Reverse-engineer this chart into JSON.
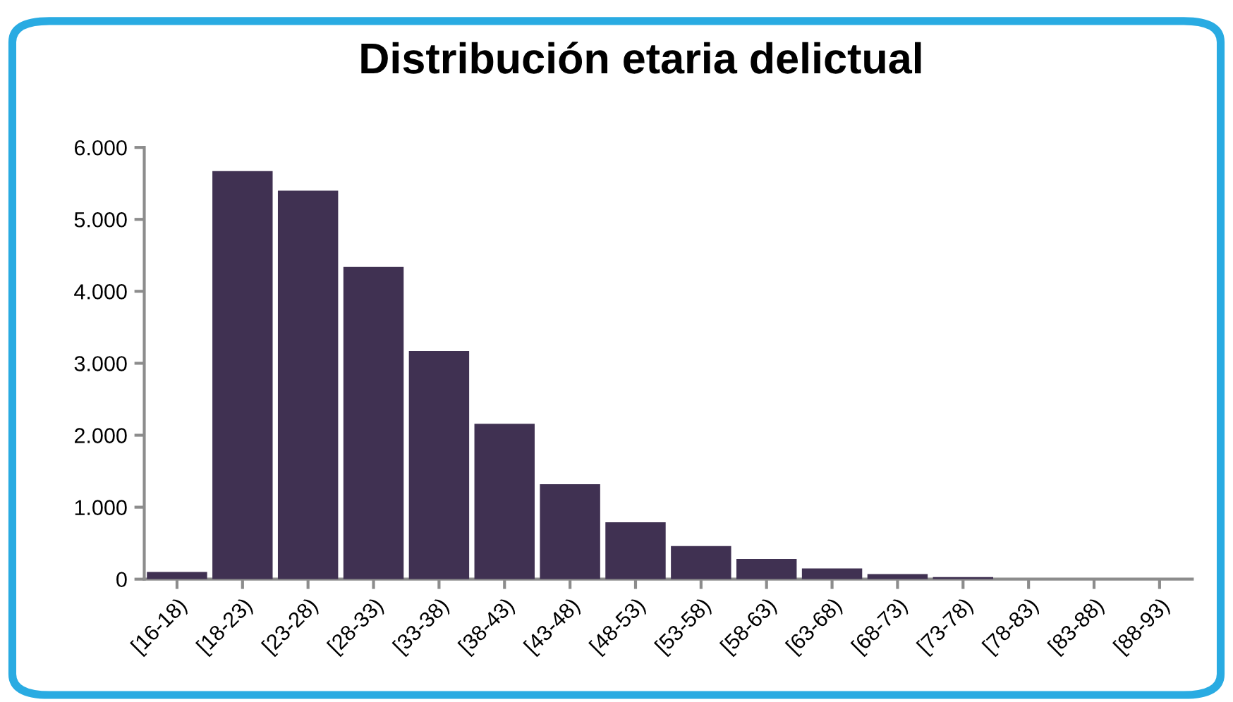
{
  "chart_data": {
    "type": "bar",
    "title": "Distribución etaria delictual",
    "categories": [
      "[16-18)",
      "[18-23)",
      "[23-28)",
      "[28-33)",
      "[33-38)",
      "[38-43)",
      "[43-48)",
      "[48-53)",
      "[53-58)",
      "[58-63)",
      "[63-68)",
      "[68-73)",
      "[73-78)",
      "[78-83)",
      "[83-88)",
      "[88-93)"
    ],
    "values": [
      100,
      5670,
      5400,
      4340,
      3170,
      2160,
      1320,
      790,
      460,
      280,
      150,
      70,
      30,
      0,
      0,
      0
    ],
    "color": "#403152",
    "ylim": [
      0,
      6000
    ],
    "yticks": [
      {
        "value": 0,
        "label": "0"
      },
      {
        "value": 1000,
        "label": "1.000"
      },
      {
        "value": 2000,
        "label": "2.000"
      },
      {
        "value": 3000,
        "label": "3.000"
      },
      {
        "value": 4000,
        "label": "4.000"
      },
      {
        "value": 5000,
        "label": "5.000"
      },
      {
        "value": 6000,
        "label": "6.000"
      }
    ],
    "grid": false,
    "legend": false
  }
}
